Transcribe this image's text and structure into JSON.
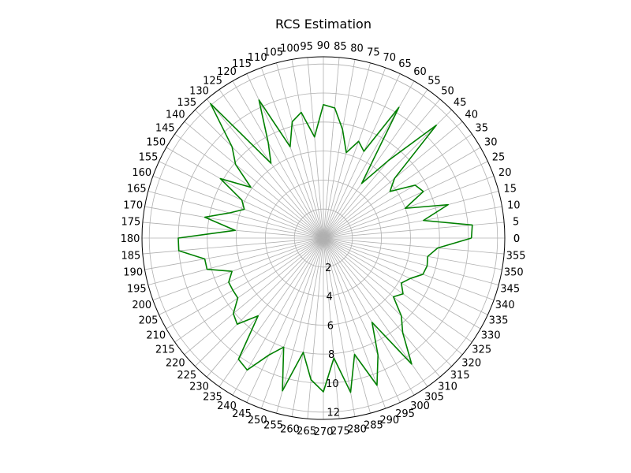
{
  "chart_data": {
    "type": "line",
    "projection": "polar",
    "title": "RCS Estimation",
    "theta_unit": "degrees",
    "theta_tick_labels": [
      "0",
      "5",
      "10",
      "15",
      "20",
      "25",
      "30",
      "35",
      "40",
      "45",
      "50",
      "55",
      "60",
      "65",
      "70",
      "75",
      "80",
      "85",
      "90",
      "95",
      "100",
      "105",
      "110",
      "115",
      "120",
      "125",
      "130",
      "135",
      "140",
      "145",
      "150",
      "155",
      "160",
      "165",
      "170",
      "175",
      "180",
      "185",
      "190",
      "195",
      "200",
      "205",
      "210",
      "215",
      "220",
      "225",
      "230",
      "235",
      "240",
      "245",
      "250",
      "255",
      "260",
      "265",
      "270",
      "275",
      "280",
      "285",
      "290",
      "295",
      "300",
      "305",
      "310",
      "315",
      "320",
      "325",
      "330",
      "335",
      "340",
      "345",
      "350",
      "355",
      "0"
    ],
    "r_tick_labels": [
      "2",
      "4",
      "6",
      "8",
      "10",
      "12"
    ],
    "rlim": [
      0,
      12.5
    ],
    "grid": true,
    "series": [
      {
        "color": "#008000",
        "theta": [
          0,
          5,
          10,
          15,
          20,
          25,
          30,
          35,
          40,
          45,
          50,
          55,
          60,
          65,
          70,
          75,
          80,
          85,
          90,
          95,
          100,
          105,
          110,
          115,
          120,
          125,
          130,
          135,
          140,
          145,
          150,
          155,
          160,
          165,
          170,
          175,
          180,
          185,
          190,
          195,
          200,
          205,
          210,
          215,
          220,
          225,
          230,
          235,
          240,
          245,
          250,
          255,
          260,
          265,
          270,
          275,
          280,
          285,
          290,
          295,
          300,
          305,
          310,
          315,
          320,
          325,
          330,
          335,
          340,
          345,
          350,
          355,
          360
        ],
        "r": [
          10.2,
          10.3,
          7.0,
          8.9,
          6.0,
          7.6,
          7.3,
          5.6,
          6.4,
          11.0,
          7.0,
          4.6,
          10.4,
          6.6,
          7.1,
          6.1,
          7.6,
          9.0,
          9.2,
          7.0,
          8.8,
          8.3,
          6.7,
          10.5,
          7.6,
          6.3,
          12.1,
          8.9,
          7.9,
          6.1,
          8.2,
          6.2,
          5.8,
          6.7,
          8.3,
          6.1,
          10.0,
          10.0,
          8.3,
          8.3,
          6.7,
          7.2,
          7.2,
          7.2,
          8.1,
          8.4,
          7.0,
          10.2,
          10.5,
          8.9,
          8.0,
          10.9,
          8.0,
          9.8,
          10.6,
          8.3,
          10.8,
          8.3,
          10.8,
          8.9,
          6.7,
          10.6,
          8.5,
          7.6,
          6.3,
          6.7,
          6.2,
          6.6,
          7.3,
          7.4,
          7.3,
          7.9,
          10.2
        ]
      }
    ]
  }
}
